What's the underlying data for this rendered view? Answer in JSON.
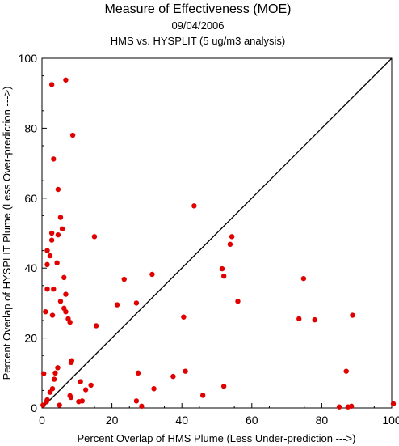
{
  "chart_data": {
    "type": "scatter",
    "title": "Measure of Effectiveness (MOE)",
    "subtitle": "09/04/2006",
    "subtitle2": "HMS vs. HYSPLIT  (5 ug/m3 analysis)",
    "xlabel": "Percent Overlap of HMS Plume (Less Under-prediction --->)",
    "ylabel": "Percent Overlap of HYSPLIT Plume (Less Over-prediction --->)",
    "xlim": [
      0,
      100
    ],
    "ylim": [
      0,
      100
    ],
    "xticks": [
      0,
      20,
      40,
      60,
      80,
      100
    ],
    "yticks": [
      0,
      20,
      40,
      60,
      80,
      100
    ],
    "grid": false,
    "reference_line": "y = x",
    "point_color": "#e00000",
    "points": [
      [
        2.8,
        92.5
      ],
      [
        6.8,
        93.8
      ],
      [
        8.8,
        78.0
      ],
      [
        3.3,
        71.2
      ],
      [
        4.6,
        62.5
      ],
      [
        5.3,
        54.5
      ],
      [
        5.8,
        51.2
      ],
      [
        4.6,
        49.5
      ],
      [
        2.8,
        50.0
      ],
      [
        2.8,
        48.0
      ],
      [
        1.5,
        45.0
      ],
      [
        2.3,
        43.5
      ],
      [
        1.5,
        41.0
      ],
      [
        4.3,
        41.5
      ],
      [
        1.5,
        34.0
      ],
      [
        3.3,
        34.0
      ],
      [
        6.3,
        37.3
      ],
      [
        1.0,
        27.5
      ],
      [
        6.8,
        32.5
      ],
      [
        5.3,
        30.5
      ],
      [
        6.3,
        28.5
      ],
      [
        6.8,
        27.5
      ],
      [
        3.0,
        26.5
      ],
      [
        7.5,
        25.5
      ],
      [
        8.0,
        24.5
      ],
      [
        8.5,
        13.5
      ],
      [
        8.3,
        13.0
      ],
      [
        4.5,
        11.5
      ],
      [
        3.8,
        10.0
      ],
      [
        0.5,
        9.8
      ],
      [
        3.5,
        8.2
      ],
      [
        3.0,
        5.5
      ],
      [
        2.3,
        4.5
      ],
      [
        1.5,
        2.3
      ],
      [
        1.3,
        1.8
      ],
      [
        0.3,
        0.8
      ],
      [
        5.0,
        0.8
      ],
      [
        8.0,
        3.5
      ],
      [
        8.3,
        3.0
      ],
      [
        10.5,
        1.8
      ],
      [
        11.0,
        7.5
      ],
      [
        11.5,
        2.0
      ],
      [
        12.5,
        5.2
      ],
      [
        14.0,
        6.5
      ],
      [
        15.0,
        49.0
      ],
      [
        15.5,
        23.5
      ],
      [
        21.5,
        29.5
      ],
      [
        23.5,
        36.8
      ],
      [
        27.0,
        30.0
      ],
      [
        27.5,
        10.0
      ],
      [
        27.0,
        2.0
      ],
      [
        28.5,
        0.5
      ],
      [
        31.5,
        38.2
      ],
      [
        32.0,
        5.5
      ],
      [
        37.5,
        9.0
      ],
      [
        40.5,
        26.0
      ],
      [
        41.0,
        10.5
      ],
      [
        43.5,
        57.8
      ],
      [
        46.0,
        3.6
      ],
      [
        51.5,
        39.8
      ],
      [
        52.0,
        37.7
      ],
      [
        52.0,
        6.2
      ],
      [
        53.8,
        46.8
      ],
      [
        54.3,
        49.0
      ],
      [
        56.0,
        30.5
      ],
      [
        73.5,
        25.5
      ],
      [
        74.8,
        37.0
      ],
      [
        78.0,
        25.2
      ],
      [
        85.0,
        0.3
      ],
      [
        87.0,
        10.5
      ],
      [
        87.5,
        0.3
      ],
      [
        88.5,
        0.5
      ],
      [
        88.8,
        26.5
      ],
      [
        101.0,
        1.2
      ]
    ]
  }
}
